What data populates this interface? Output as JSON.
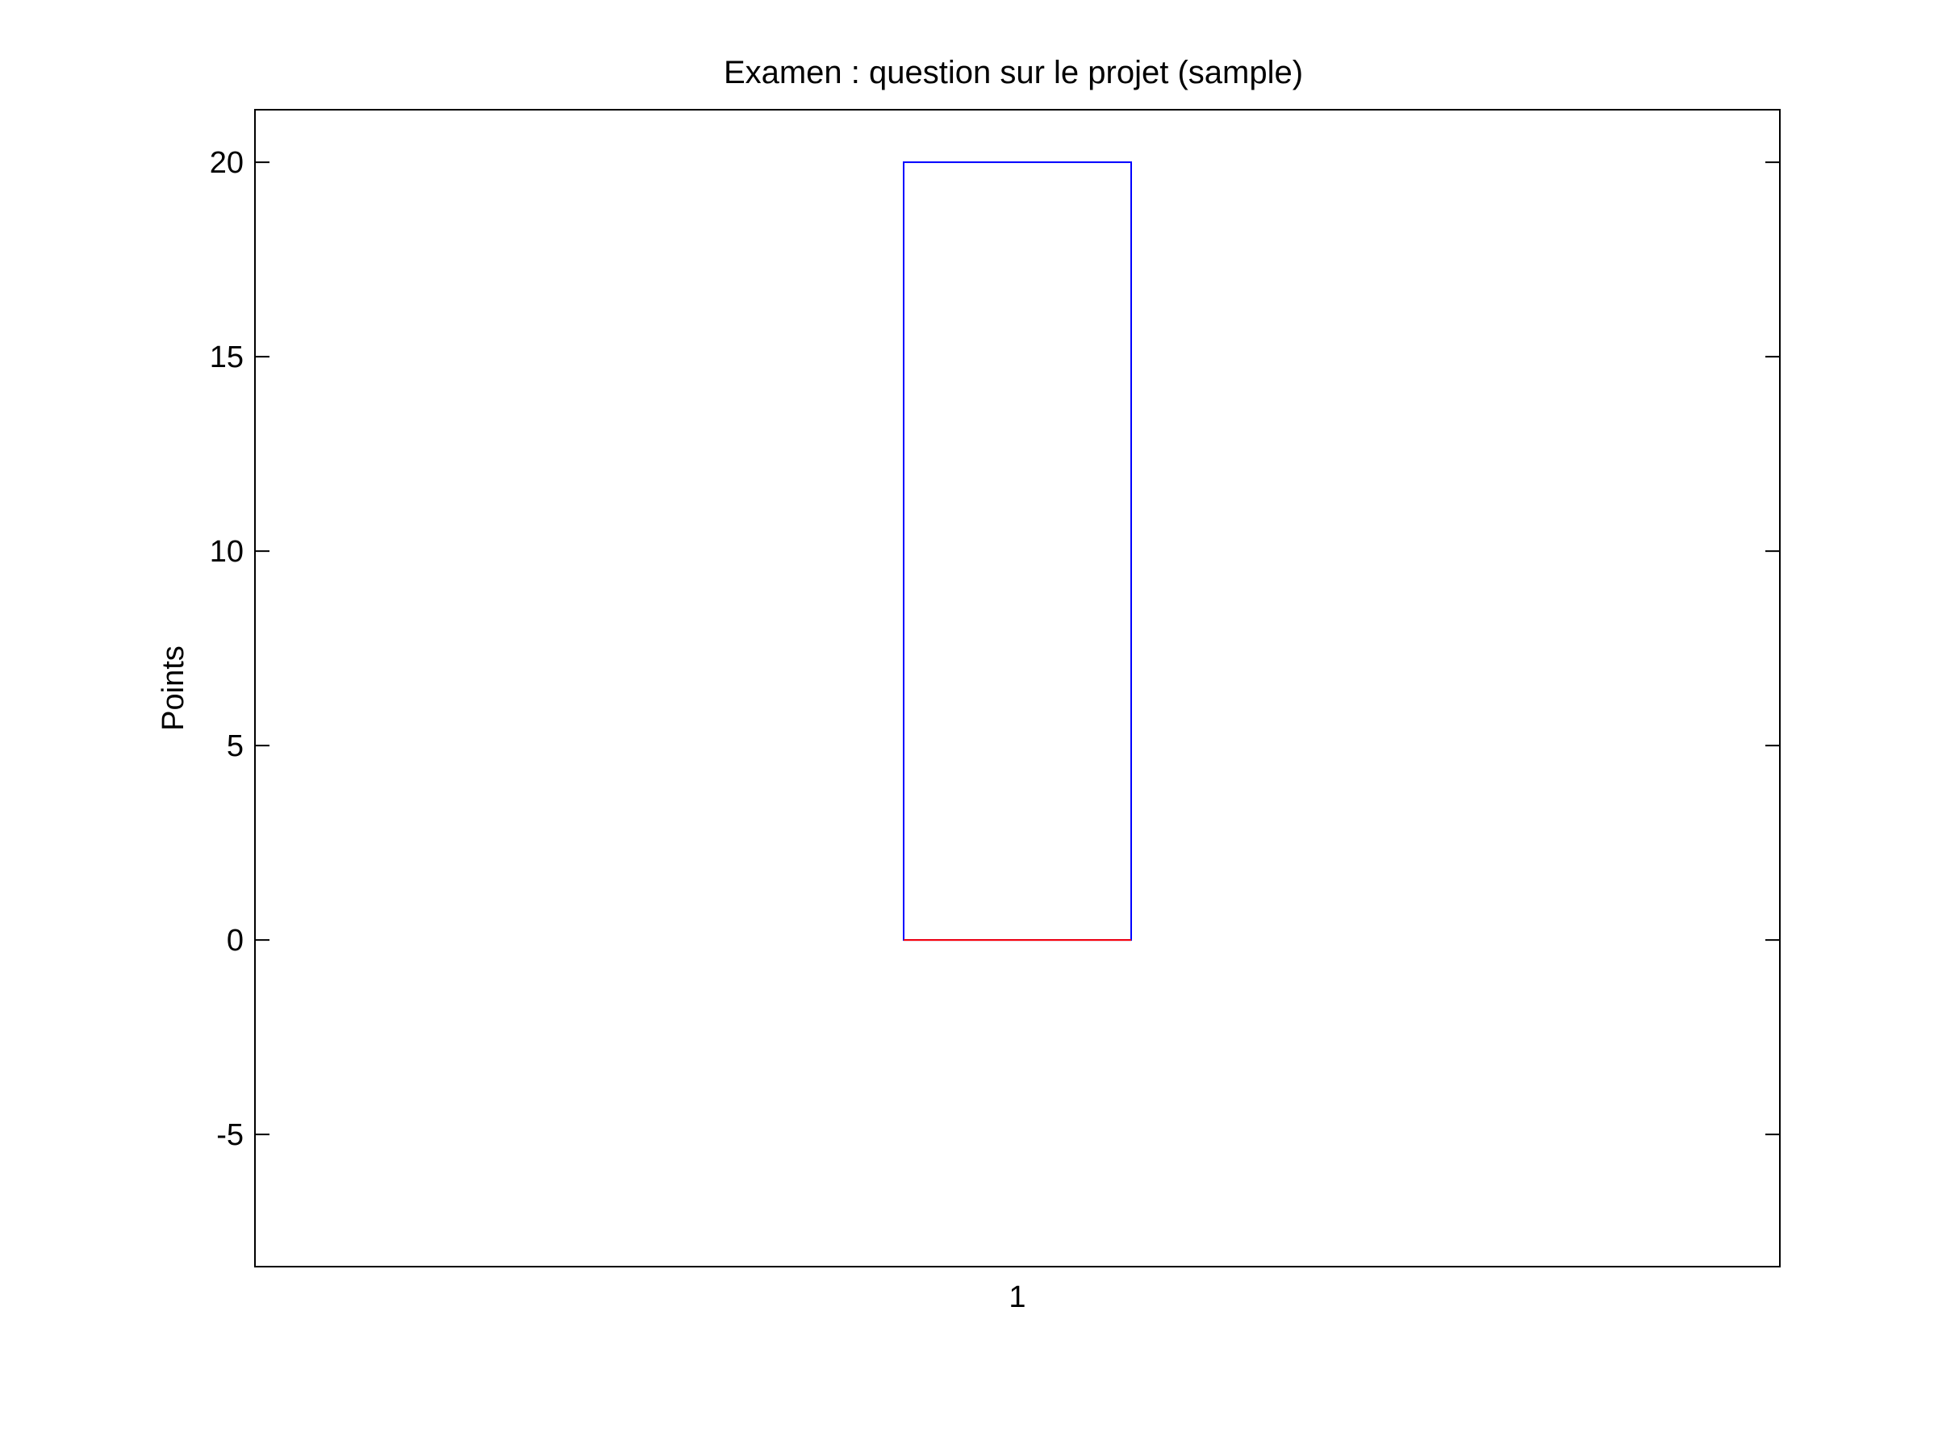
{
  "chart_data": {
    "type": "box",
    "title": "Examen : question sur le projet (sample)",
    "xlabel": "",
    "ylabel": "Points",
    "categories": [
      "1"
    ],
    "ylim": [
      -8.4,
      21.35
    ],
    "yticks": [
      -5,
      0,
      5,
      10,
      15,
      20
    ],
    "ytick_labels": [
      "-5",
      "0",
      "5",
      "10",
      "15",
      "20"
    ],
    "grid": false,
    "boxes": [
      {
        "category": "1",
        "lower_quartile": 0,
        "median": 0,
        "upper_quartile": 20,
        "lower_whisker": 0,
        "upper_whisker": 20
      }
    ],
    "colors": {
      "box": "#0000ff",
      "median": "#ff0000",
      "axes": "#000000"
    }
  }
}
